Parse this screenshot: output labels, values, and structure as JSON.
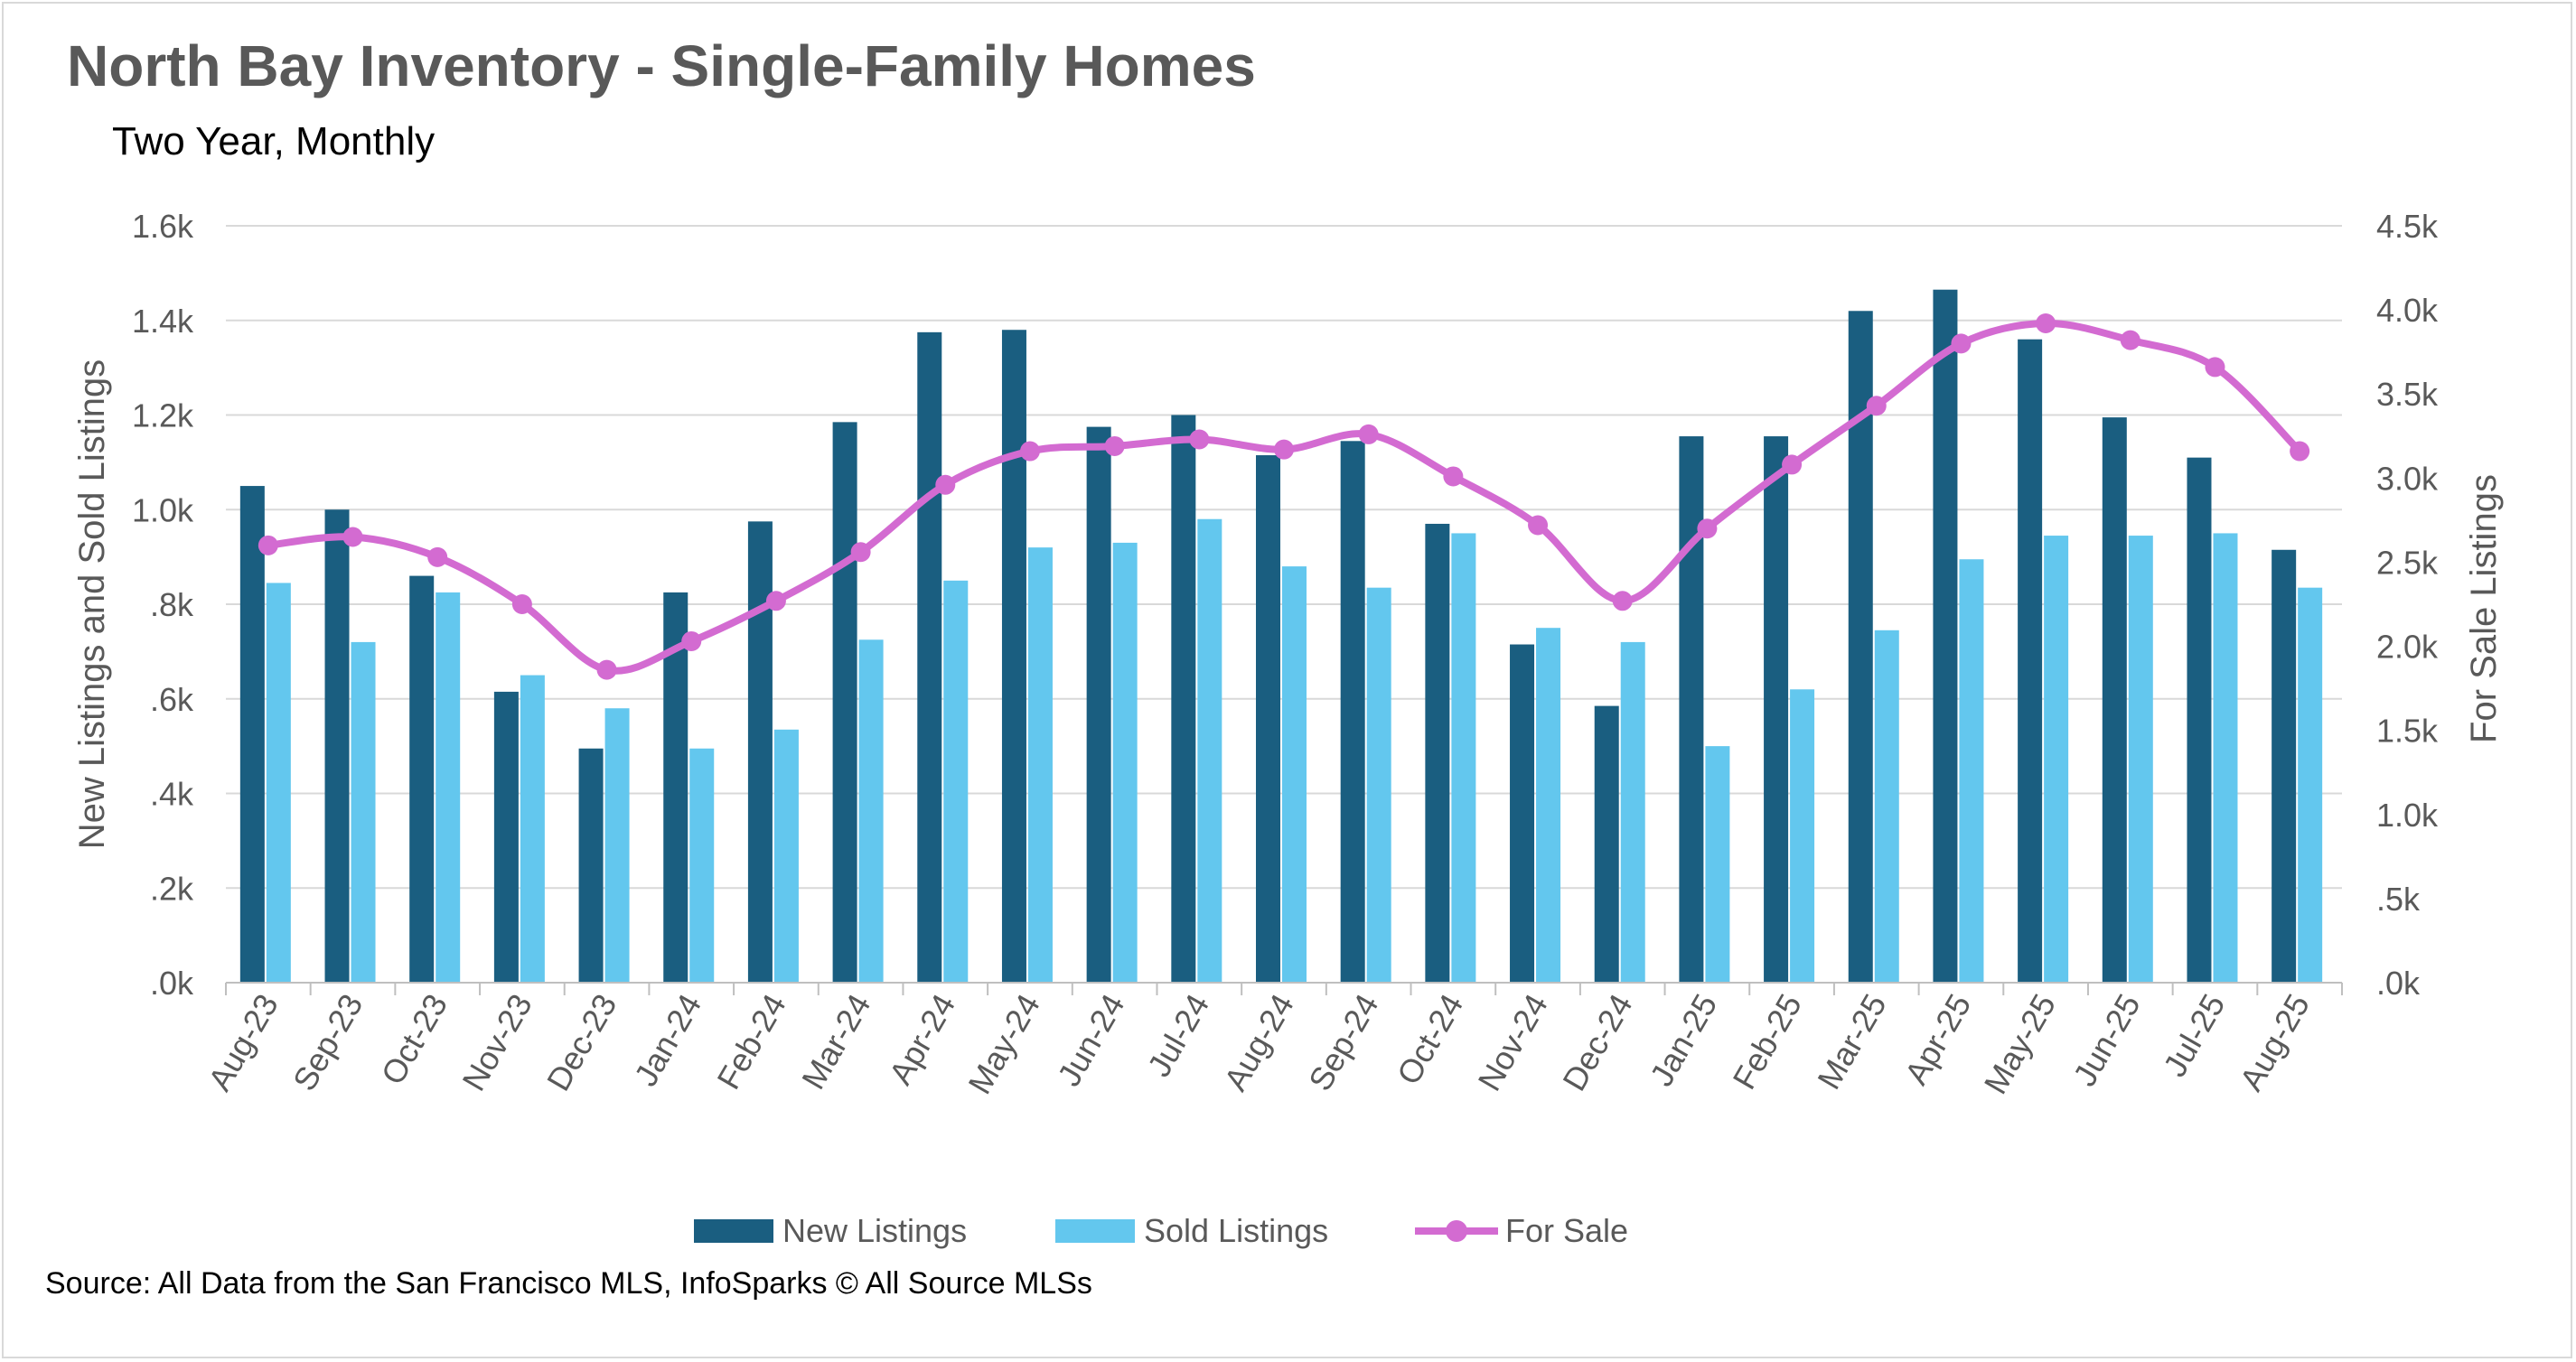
{
  "chart_data": {
    "type": "bar",
    "title": "North Bay Inventory - Single-Family Homes",
    "subtitle": "Two Year, Monthly",
    "source": "Source: All Data from the San Francisco MLS, InfoSparks © All Source MLSs",
    "categories": [
      "Aug-23",
      "Sep-23",
      "Oct-23",
      "Nov-23",
      "Dec-23",
      "Jan-24",
      "Feb-24",
      "Mar-24",
      "Apr-24",
      "May-24",
      "Jun-24",
      "Jul-24",
      "Aug-24",
      "Sep-24",
      "Oct-24",
      "Nov-24",
      "Dec-24",
      "Jan-25",
      "Feb-25",
      "Mar-25",
      "Apr-25",
      "May-25",
      "Jun-25",
      "Jul-25",
      "Aug-25"
    ],
    "series": [
      {
        "name": "New Listings",
        "type": "bar",
        "axis": "left",
        "color": "#1a5e80",
        "values": [
          1050,
          1000,
          860,
          615,
          495,
          825,
          975,
          1185,
          1375,
          1380,
          1175,
          1200,
          1115,
          1145,
          970,
          715,
          585,
          1155,
          1155,
          1420,
          1465,
          1360,
          1195,
          1110,
          915
        ]
      },
      {
        "name": "Sold Listings",
        "type": "bar",
        "axis": "left",
        "color": "#63c7ee",
        "values": [
          845,
          720,
          825,
          650,
          580,
          495,
          535,
          725,
          850,
          920,
          930,
          980,
          880,
          835,
          950,
          750,
          720,
          500,
          620,
          745,
          895,
          945,
          945,
          950,
          835
        ]
      },
      {
        "name": "For Sale",
        "type": "line",
        "axis": "right",
        "color": "#d36bd1",
        "values": [
          2600,
          2650,
          2530,
          2250,
          1860,
          2030,
          2270,
          2560,
          2960,
          3160,
          3190,
          3230,
          3170,
          3260,
          3010,
          2720,
          2270,
          2700,
          3080,
          3430,
          3800,
          3920,
          3820,
          3660,
          3160
        ]
      }
    ],
    "ylabel": "New Listings and Sold Listings",
    "y2label": "For Sale Listings",
    "ylim": [
      0,
      1600
    ],
    "y2lim": [
      0,
      4500
    ],
    "yticks": [
      ".0k",
      ".2k",
      ".4k",
      ".6k",
      ".8k",
      "1.0k",
      "1.2k",
      "1.4k",
      "1.6k"
    ],
    "y2ticks": [
      ".0k",
      ".5k",
      "1.0k",
      "1.5k",
      "2.0k",
      "2.5k",
      "3.0k",
      "3.5k",
      "4.0k",
      "4.5k"
    ],
    "grid": true,
    "legend": "bottom"
  }
}
